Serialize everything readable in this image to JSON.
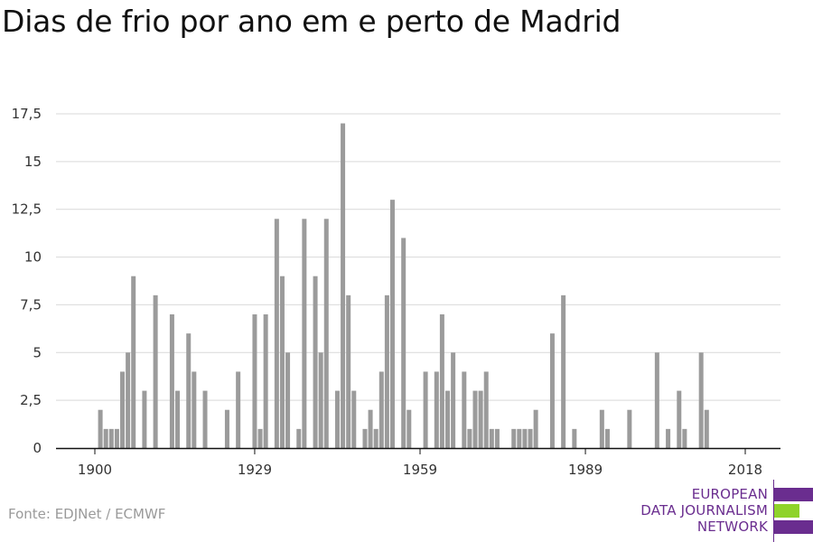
{
  "chart_data": {
    "type": "bar",
    "title": "Dias de frio por ano em e perto de Madrid",
    "xlabel": "",
    "ylabel": "",
    "xlim": [
      1900,
      2018
    ],
    "ylim": [
      0,
      17.5
    ],
    "x_ticks": [
      {
        "value": 1900,
        "label": "1900"
      },
      {
        "value": 1929,
        "label": "1929"
      },
      {
        "value": 1959,
        "label": "1959"
      },
      {
        "value": 1989,
        "label": "1989"
      },
      {
        "value": 2018,
        "label": "2018"
      }
    ],
    "y_ticks": [
      {
        "value": 0,
        "label": "0"
      },
      {
        "value": 2.5,
        "label": "2,5"
      },
      {
        "value": 5,
        "label": "5"
      },
      {
        "value": 7.5,
        "label": "7,5"
      },
      {
        "value": 10,
        "label": "10"
      },
      {
        "value": 12.5,
        "label": "12,5"
      },
      {
        "value": 15,
        "label": "15"
      },
      {
        "value": 17.5,
        "label": "17,5"
      }
    ],
    "grid": true,
    "bar_color": "#9b9b9b",
    "years": [
      1900,
      1901,
      1902,
      1903,
      1904,
      1905,
      1906,
      1907,
      1908,
      1909,
      1910,
      1911,
      1912,
      1913,
      1914,
      1915,
      1916,
      1917,
      1918,
      1919,
      1920,
      1921,
      1922,
      1923,
      1924,
      1925,
      1926,
      1927,
      1928,
      1929,
      1930,
      1931,
      1932,
      1933,
      1934,
      1935,
      1936,
      1937,
      1938,
      1939,
      1940,
      1941,
      1942,
      1943,
      1944,
      1945,
      1946,
      1947,
      1948,
      1949,
      1950,
      1951,
      1952,
      1953,
      1954,
      1955,
      1956,
      1957,
      1958,
      1959,
      1960,
      1961,
      1962,
      1963,
      1964,
      1965,
      1966,
      1967,
      1968,
      1969,
      1970,
      1971,
      1972,
      1973,
      1974,
      1975,
      1976,
      1977,
      1978,
      1979,
      1980,
      1981,
      1982,
      1983,
      1984,
      1985,
      1986,
      1987,
      1988,
      1989,
      1990,
      1991,
      1992,
      1993,
      1994,
      1995,
      1996,
      1997,
      1998,
      1999,
      2000,
      2001,
      2002,
      2003,
      2004,
      2005,
      2006,
      2007,
      2008,
      2009,
      2010,
      2011,
      2012,
      2013,
      2014,
      2015,
      2016,
      2017,
      2018
    ],
    "values": [
      0,
      2,
      1,
      1,
      1,
      4,
      5,
      9,
      0,
      3,
      0,
      8,
      0,
      0,
      7,
      3,
      0,
      6,
      4,
      0,
      3,
      0,
      0,
      0,
      2,
      0,
      4,
      0,
      0,
      7,
      1,
      7,
      0,
      12,
      9,
      5,
      0,
      1,
      12,
      0,
      9,
      5,
      12,
      0,
      3,
      17,
      8,
      3,
      0,
      1,
      2,
      1,
      4,
      8,
      13,
      0,
      11,
      2,
      0,
      0,
      4,
      0,
      4,
      7,
      3,
      5,
      0,
      4,
      1,
      3,
      3,
      4,
      1,
      1,
      0,
      0,
      1,
      1,
      1,
      1,
      2,
      0,
      0,
      6,
      0,
      8,
      0,
      1,
      0,
      0,
      0,
      0,
      2,
      1,
      0,
      0,
      0,
      2,
      0,
      0,
      0,
      0,
      5,
      0,
      1,
      0,
      3,
      1,
      0,
      0,
      5,
      2,
      0,
      0,
      0,
      0,
      0,
      0,
      0
    ]
  },
  "source": "Fonte: EDJNet / ECMWF",
  "logo": {
    "lines": [
      "EUROPEAN",
      "DATA JOURNALISM",
      "NETWORK"
    ],
    "colors": {
      "purple": "#6a2d8f",
      "green": "#8fd32b"
    }
  }
}
